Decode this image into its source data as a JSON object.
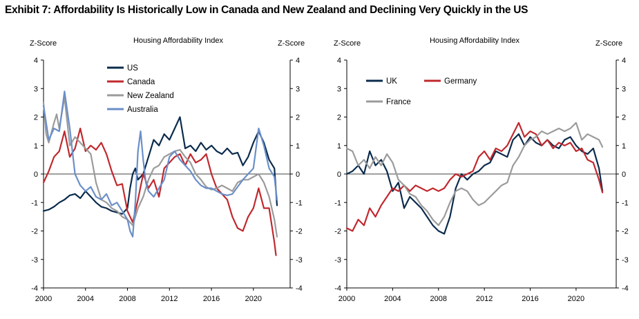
{
  "title": "Exhibit 7: Affordability Is Historically Low in Canada and New Zealand and Declining Very Quickly in the US",
  "chart_data": [
    {
      "type": "line",
      "title": "Housing Affordability Index",
      "ylabel_left": "Z-Score",
      "ylabel_right": "Z-Score",
      "xlim": [
        2000,
        2023.5
      ],
      "ylim": [
        -4,
        4
      ],
      "xticks": [
        "2000",
        "2004",
        "2008",
        "2012",
        "2016",
        "2020"
      ],
      "yticks": [
        "4",
        "3",
        "2",
        "1",
        "0",
        "-1",
        "-2",
        "-3",
        "-4"
      ],
      "legend_position": "top-center",
      "series": [
        {
          "name": "US",
          "color": "#0b2b4c",
          "x": [
            2000,
            2000.5,
            2001,
            2001.5,
            2002,
            2002.5,
            2003,
            2003.5,
            2004,
            2004.5,
            2005,
            2005.5,
            2006,
            2006.5,
            2007,
            2007.5,
            2008,
            2008.25,
            2008.5,
            2008.75,
            2009,
            2009.5,
            2010,
            2010.5,
            2011,
            2011.5,
            2012,
            2012.5,
            2013,
            2013.5,
            2014,
            2014.5,
            2015,
            2015.5,
            2016,
            2016.5,
            2017,
            2017.5,
            2018,
            2018.5,
            2019,
            2019.5,
            2020,
            2020.5,
            2021,
            2021.5,
            2022,
            2022.25
          ],
          "y": [
            -1.3,
            -1.25,
            -1.15,
            -1.0,
            -0.9,
            -0.75,
            -0.7,
            -0.85,
            -0.6,
            -0.8,
            -1.0,
            -1.15,
            -1.2,
            -1.3,
            -1.35,
            -1.4,
            -1.2,
            -0.5,
            0.0,
            0.2,
            -0.2,
            0.0,
            0.6,
            1.2,
            1.0,
            1.4,
            1.2,
            1.6,
            2.0,
            0.9,
            1.0,
            0.8,
            1.1,
            0.85,
            1.0,
            0.8,
            0.7,
            0.9,
            0.7,
            0.75,
            0.3,
            0.6,
            1.1,
            1.5,
            1.1,
            0.5,
            0.2,
            -1.1
          ]
        },
        {
          "name": "Canada",
          "color": "#c0282d",
          "x": [
            2000,
            2000.5,
            2001,
            2001.5,
            2002,
            2002.5,
            2003,
            2003.5,
            2004,
            2004.5,
            2005,
            2005.5,
            2006,
            2006.5,
            2007,
            2007.5,
            2008,
            2008.5,
            2009,
            2009.5,
            2010,
            2010.5,
            2011,
            2011.5,
            2012,
            2012.5,
            2013,
            2013.5,
            2014,
            2014.5,
            2015,
            2015.5,
            2016,
            2016.5,
            2017,
            2017.5,
            2018,
            2018.5,
            2019,
            2019.5,
            2020,
            2020.5,
            2021,
            2021.5,
            2022,
            2022.15
          ],
          "y": [
            -0.3,
            0.1,
            0.6,
            0.8,
            1.5,
            0.6,
            0.9,
            1.6,
            0.8,
            1.0,
            0.85,
            1.1,
            0.7,
            0.1,
            -0.4,
            -0.35,
            -1.3,
            -1.7,
            -0.9,
            0.0,
            -0.5,
            -0.2,
            -0.8,
            0.2,
            0.4,
            0.6,
            0.7,
            0.3,
            0.7,
            0.4,
            0.5,
            0.7,
            0.0,
            -0.5,
            -0.7,
            -0.9,
            -1.5,
            -1.9,
            -2.0,
            -1.5,
            -1.2,
            -0.5,
            -1.2,
            -1.2,
            -2.4,
            -2.85
          ]
        },
        {
          "name": "New Zealand",
          "color": "#9b9b9b",
          "x": [
            2000,
            2000.25,
            2000.5,
            2001,
            2001.25,
            2001.5,
            2002,
            2002.5,
            2003,
            2003.5,
            2004,
            2004.5,
            2005,
            2005.5,
            2006,
            2006.5,
            2007,
            2007.5,
            2008,
            2008.5,
            2009,
            2009.5,
            2010,
            2010.5,
            2011,
            2011.5,
            2012,
            2012.5,
            2013,
            2013.5,
            2014,
            2014.5,
            2015,
            2015.5,
            2016,
            2016.5,
            2017,
            2017.5,
            2018,
            2018.5,
            2019,
            2019.5,
            2020,
            2020.5,
            2021,
            2021.5,
            2022,
            2022.25
          ],
          "y": [
            2.5,
            1.4,
            1.1,
            1.8,
            2.1,
            1.6,
            2.7,
            1.0,
            1.3,
            1.1,
            0.9,
            0.7,
            -0.3,
            -0.9,
            -1.0,
            -1.2,
            -1.3,
            -1.5,
            -1.6,
            -1.8,
            -1.2,
            -0.8,
            -0.2,
            0.2,
            0.3,
            0.6,
            0.7,
            0.8,
            0.85,
            0.6,
            0.4,
            0.0,
            -0.2,
            -0.45,
            -0.55,
            -0.5,
            -0.4,
            -0.5,
            -0.6,
            -0.3,
            -0.2,
            -0.2,
            -0.1,
            0.0,
            -0.3,
            -0.8,
            -1.6,
            -2.2
          ]
        },
        {
          "name": "Australia",
          "color": "#6a8fc9",
          "x": [
            2000,
            2000.5,
            2001,
            2001.5,
            2002,
            2002.5,
            2003,
            2003.5,
            2004,
            2004.5,
            2005,
            2005.5,
            2006,
            2006.5,
            2007,
            2007.5,
            2008,
            2008.25,
            2008.5,
            2008.75,
            2009,
            2009.25,
            2009.5,
            2009.75,
            2010,
            2010.5,
            2011,
            2011.5,
            2012,
            2012.5,
            2013,
            2013.5,
            2014,
            2014.5,
            2015,
            2015.5,
            2016,
            2016.5,
            2017,
            2017.5,
            2018,
            2018.5,
            2019,
            2019.5,
            2020,
            2020.5,
            2021,
            2021.5,
            2022,
            2022.25
          ],
          "y": [
            2.4,
            1.2,
            1.6,
            1.5,
            2.9,
            1.6,
            0.0,
            -0.4,
            -0.6,
            -0.45,
            -0.8,
            -0.9,
            -0.7,
            -1.1,
            -1.0,
            -1.3,
            -1.6,
            -2.0,
            -2.2,
            -1.0,
            0.8,
            1.5,
            0.5,
            -0.3,
            -0.6,
            -0.8,
            -0.5,
            -0.2,
            0.6,
            0.8,
            0.5,
            0.3,
            0.1,
            -0.2,
            -0.4,
            -0.5,
            -0.5,
            -0.6,
            -0.7,
            -0.75,
            -0.7,
            -0.45,
            -0.2,
            0.0,
            0.2,
            1.6,
            1.0,
            0.2,
            -0.1,
            -0.9
          ]
        }
      ]
    },
    {
      "type": "line",
      "title": "Housing Affordability Index",
      "ylabel_left": "Z-Score",
      "ylabel_right": "Z-Score",
      "xlim": [
        2000,
        2023.5
      ],
      "ylim": [
        -4,
        4
      ],
      "xticks": [
        "2000",
        "2004",
        "2008",
        "2012",
        "2016",
        "2020"
      ],
      "yticks": [
        "4",
        "3",
        "2",
        "1",
        "0",
        "-1",
        "-2",
        "-3",
        "-4"
      ],
      "legend_position": "top-left",
      "series": [
        {
          "name": "UK",
          "color": "#0b2b4c",
          "x": [
            2000,
            2000.5,
            2001,
            2001.5,
            2002,
            2002.5,
            2003,
            2003.5,
            2004,
            2004.5,
            2005,
            2005.5,
            2006,
            2006.5,
            2007,
            2007.5,
            2008,
            2008.5,
            2009,
            2009.5,
            2010,
            2010.5,
            2011,
            2011.5,
            2012,
            2012.5,
            2013,
            2013.5,
            2014,
            2014.5,
            2015,
            2015.5,
            2016,
            2016.5,
            2017,
            2017.5,
            2018,
            2018.5,
            2019,
            2019.5,
            2020,
            2020.5,
            2021,
            2021.5,
            2022,
            2022.3
          ],
          "y": [
            0.0,
            0.1,
            0.3,
            0.0,
            0.8,
            0.3,
            0.5,
            0.1,
            -0.6,
            -0.3,
            -1.2,
            -0.8,
            -1.0,
            -1.2,
            -1.5,
            -1.8,
            -2.0,
            -2.1,
            -1.5,
            -0.5,
            0.0,
            -0.2,
            0.0,
            0.1,
            0.3,
            0.4,
            0.8,
            0.7,
            0.6,
            1.2,
            1.4,
            1.0,
            1.3,
            1.1,
            1.0,
            1.2,
            1.0,
            0.9,
            1.2,
            1.3,
            1.0,
            0.8,
            0.7,
            0.9,
            0.2,
            -0.6
          ]
        },
        {
          "name": "Germany",
          "color": "#c0282d",
          "x": [
            2000,
            2000.5,
            2001,
            2001.5,
            2002,
            2002.5,
            2003,
            2003.5,
            2004,
            2004.5,
            2005,
            2005.5,
            2006,
            2006.5,
            2007,
            2007.5,
            2008,
            2008.5,
            2009,
            2009.5,
            2010,
            2010.5,
            2011,
            2011.5,
            2012,
            2012.5,
            2013,
            2013.5,
            2014,
            2014.5,
            2015,
            2015.5,
            2016,
            2016.5,
            2017,
            2017.5,
            2018,
            2018.5,
            2019,
            2019.5,
            2020,
            2020.5,
            2021,
            2021.5,
            2022,
            2022.3
          ],
          "y": [
            -1.9,
            -2.0,
            -1.6,
            -1.8,
            -1.2,
            -1.5,
            -1.1,
            -0.8,
            -0.5,
            -0.6,
            -0.4,
            -0.6,
            -0.4,
            -0.5,
            -0.6,
            -0.5,
            -0.6,
            -0.5,
            -0.2,
            0.0,
            -0.1,
            0.0,
            0.1,
            0.6,
            0.8,
            0.5,
            0.9,
            0.8,
            1.0,
            1.4,
            1.8,
            1.3,
            1.5,
            1.4,
            1.0,
            1.2,
            0.9,
            1.1,
            1.0,
            1.1,
            0.8,
            0.9,
            0.5,
            0.4,
            -0.2,
            -0.65
          ]
        },
        {
          "name": "France",
          "color": "#9b9b9b",
          "x": [
            2000,
            2000.5,
            2001,
            2001.5,
            2002,
            2002.5,
            2003,
            2003.5,
            2004,
            2004.5,
            2005,
            2005.5,
            2006,
            2006.5,
            2007,
            2007.5,
            2008,
            2008.5,
            2009,
            2009.5,
            2010,
            2010.5,
            2011,
            2011.5,
            2012,
            2012.5,
            2013,
            2013.5,
            2014,
            2014.5,
            2015,
            2015.5,
            2016,
            2016.5,
            2017,
            2017.5,
            2018,
            2018.5,
            2019,
            2019.5,
            2020,
            2020.5,
            2021,
            2021.5,
            2022,
            2022.3
          ],
          "y": [
            0.9,
            0.8,
            0.3,
            0.5,
            0.2,
            0.6,
            0.3,
            0.7,
            0.4,
            -0.2,
            -0.4,
            -0.7,
            -0.8,
            -1.1,
            -1.3,
            -1.6,
            -1.8,
            -1.5,
            -1.0,
            -0.6,
            -0.5,
            -0.6,
            -0.9,
            -1.1,
            -1.0,
            -0.8,
            -0.6,
            -0.4,
            -0.3,
            0.3,
            0.6,
            1.0,
            1.2,
            1.3,
            1.5,
            1.4,
            1.5,
            1.6,
            1.5,
            1.6,
            1.8,
            1.2,
            1.4,
            1.3,
            1.2,
            0.95
          ]
        }
      ]
    }
  ]
}
